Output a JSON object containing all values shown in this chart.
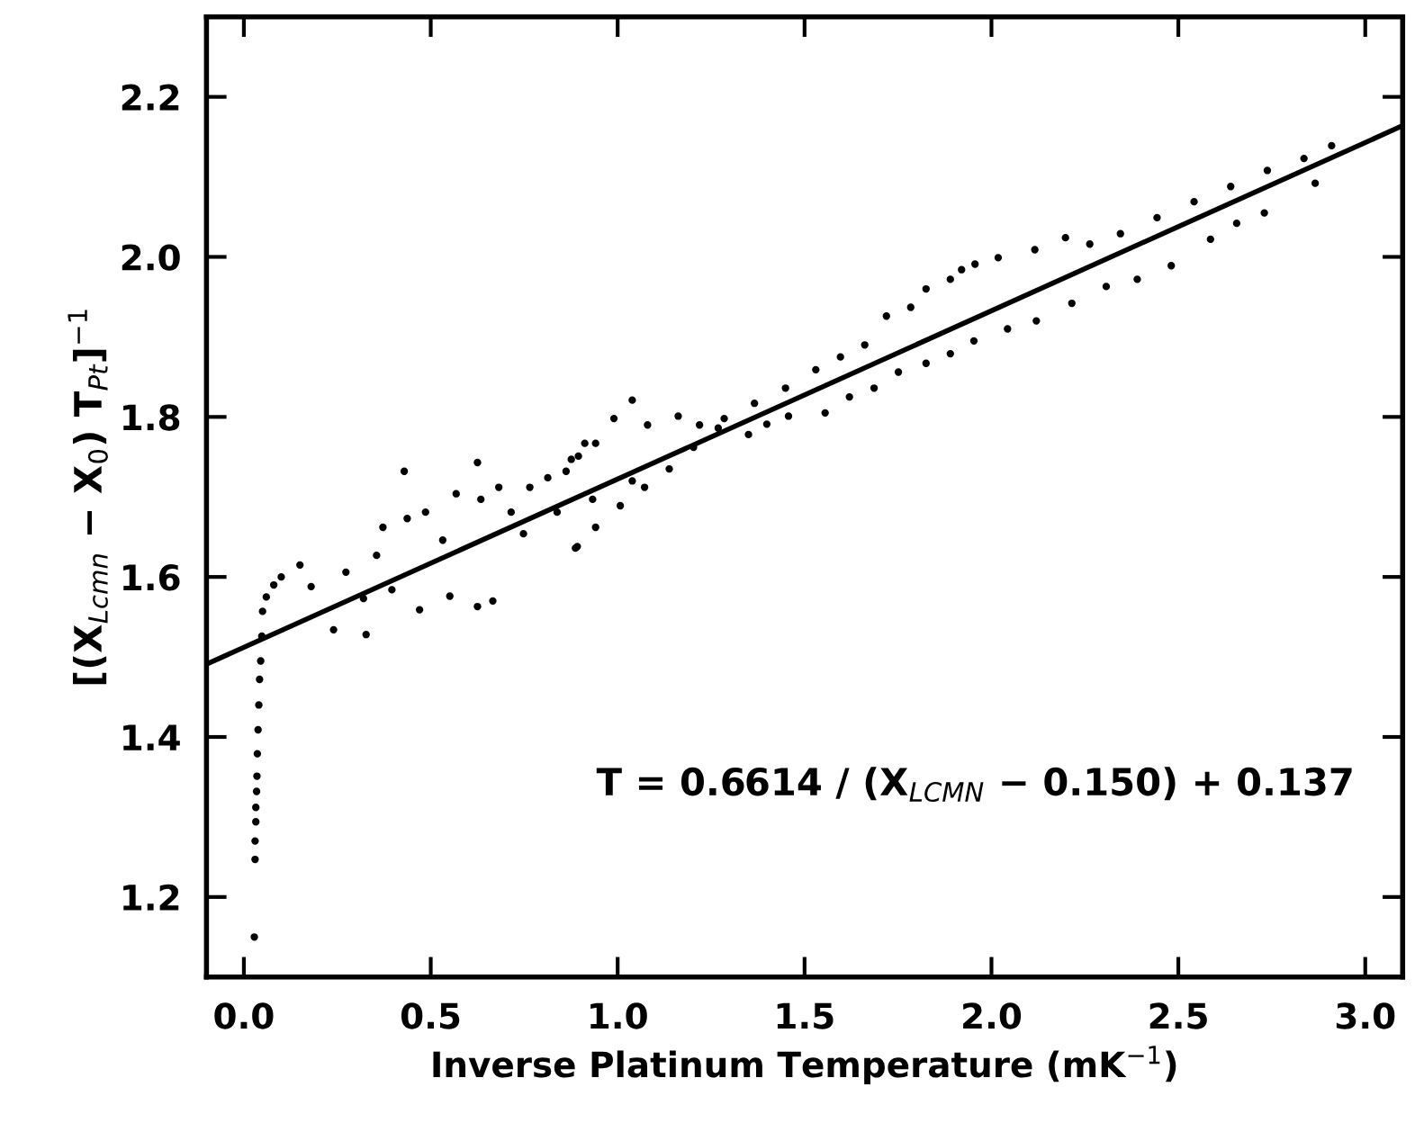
{
  "chart_data": {
    "type": "scatter",
    "xlabel": "Inverse Platinum Temperature (mK$^{−1}$)",
    "ylabel": "[(X$_{Lcmn}$ − X$_{0}$) T$_{Pt}$]$^{−1}$",
    "annotations": [
      "T = 0.6614 / (X$_{LCMN}$ − 0.150) + 0.137"
    ],
    "xlim": [
      -0.1,
      3.1
    ],
    "ylim": [
      1.1,
      2.3
    ],
    "xticks": [
      {
        "value": 0,
        "label": "0.0"
      },
      0.5,
      {
        "value": 1,
        "label": "1.0"
      },
      1.5,
      {
        "value": 2,
        "label": "2.0"
      },
      2.5,
      {
        "value": 3,
        "label": "3.0"
      }
    ],
    "yticks": [
      1.2,
      1.4,
      1.6,
      1.8,
      {
        "value": 2,
        "label": "2.0"
      },
      2.2
    ],
    "grid": false,
    "legend": false,
    "marker": "circle",
    "series": [
      {
        "color": "#000000",
        "x": [
          0.028,
          0.03,
          0.03,
          0.032,
          0.032,
          0.034,
          0.035,
          0.036,
          0.038,
          0.04,
          0.042,
          0.045,
          0.048,
          0.05,
          0.06,
          0.08,
          0.1,
          0.15,
          0.18,
          0.24,
          0.273,
          0.32,
          0.327,
          0.355,
          0.372,
          0.396,
          0.429,
          0.437,
          0.47,
          0.486,
          0.532,
          0.551,
          0.568,
          0.625,
          0.625,
          0.634,
          0.666,
          0.682,
          0.715,
          0.748,
          0.765,
          0.813,
          0.838,
          0.862,
          0.876,
          0.895,
          0.912,
          0.941,
          0.99,
          1.039,
          1.08,
          1.162,
          1.219,
          1.285,
          1.366,
          1.449,
          1.53,
          1.596,
          1.661,
          1.719,
          1.784,
          1.825,
          1.89,
          1.92,
          1.956,
          2.018,
          2.116,
          2.198,
          2.263,
          2.345,
          2.443,
          2.542,
          2.64,
          2.738,
          2.836,
          2.91
        ],
        "values": [
          1.15,
          1.247,
          1.27,
          1.294,
          1.312,
          1.332,
          1.351,
          1.379,
          1.409,
          1.44,
          1.472,
          1.495,
          1.526,
          1.557,
          1.575,
          1.59,
          1.6,
          1.615,
          1.588,
          1.534,
          1.606,
          1.573,
          1.528,
          1.627,
          1.662,
          1.584,
          1.732,
          1.673,
          1.559,
          1.681,
          1.646,
          1.576,
          1.704,
          1.743,
          1.563,
          1.697,
          1.57,
          1.712,
          1.681,
          1.654,
          1.712,
          1.724,
          1.681,
          1.732,
          1.747,
          1.751,
          1.767,
          1.767,
          1.798,
          1.821,
          1.79,
          1.801,
          1.79,
          1.798,
          1.817,
          1.836,
          1.859,
          1.875,
          1.89,
          1.926,
          1.937,
          1.96,
          1.972,
          1.984,
          1.991,
          1.999,
          2.009,
          2.024,
          2.016,
          2.029,
          2.049,
          2.069,
          2.088,
          2.108,
          2.123,
          2.139
        ]
      },
      {
        "color": "#000000",
        "x": [
          0.887,
          0.892,
          0.941,
          1.007,
          1.072,
          1.138,
          1.203,
          1.269,
          0.933,
          1.039,
          1.35,
          1.399,
          1.457,
          1.555,
          1.62,
          1.686,
          1.751,
          1.825,
          1.89,
          1.953,
          2.043,
          2.12,
          2.215,
          2.307,
          2.39,
          2.481,
          2.586,
          2.656,
          2.73,
          2.866
        ],
        "values": [
          1.636,
          1.638,
          1.662,
          1.689,
          1.712,
          1.735,
          1.762,
          1.786,
          1.697,
          1.72,
          1.778,
          1.791,
          1.801,
          1.805,
          1.825,
          1.836,
          1.856,
          1.867,
          1.879,
          1.895,
          1.91,
          1.92,
          1.942,
          1.963,
          1.972,
          1.989,
          2.022,
          2.042,
          2.055,
          2.092
        ]
      },
      {
        "type": "line",
        "color": "#000000",
        "marker": "none",
        "line_style": "solid",
        "x": [
          -0.1,
          3.1
        ],
        "values": [
          1.491,
          2.164
        ]
      }
    ]
  }
}
